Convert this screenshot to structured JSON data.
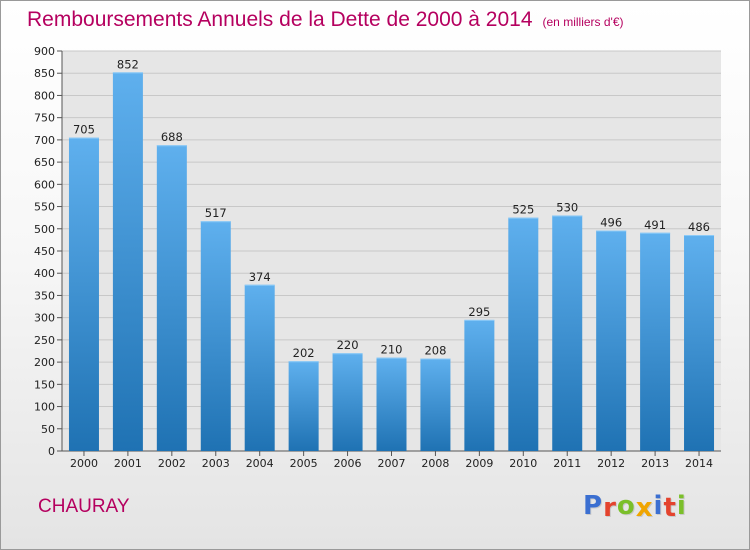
{
  "title": "Remboursements Annuels de la Dette de 2000 à 2014",
  "subtitle": "(en milliers d'€)",
  "commune": "CHAURAY",
  "logo": {
    "text": "Proxiti",
    "letters": [
      {
        "char": "P",
        "color": "#3b6fd1"
      },
      {
        "char": "r",
        "color": "#e4432d"
      },
      {
        "char": "o",
        "color": "#7bbf2a"
      },
      {
        "char": "x",
        "color": "#f0a500"
      },
      {
        "char": "i",
        "color": "#3b6fd1"
      },
      {
        "char": "t",
        "color": "#e4432d"
      },
      {
        "char": "i",
        "color": "#7bbf2a"
      }
    ]
  },
  "colors": {
    "title": "#b5005f",
    "bar_top": "#5fb0ee",
    "bar_bottom": "#1f72b3",
    "grid": "#c8c8c8",
    "plot_background": "#e6e6e6"
  },
  "chart_data": {
    "type": "bar",
    "title": "Remboursements Annuels de la Dette de 2000 à 2014",
    "subtitle": "(en milliers d'€)",
    "xlabel": "",
    "ylabel": "",
    "categories": [
      "2000",
      "2001",
      "2002",
      "2003",
      "2004",
      "2005",
      "2006",
      "2007",
      "2008",
      "2009",
      "2010",
      "2011",
      "2012",
      "2013",
      "2014"
    ],
    "values": [
      705,
      852,
      688,
      517,
      374,
      202,
      220,
      210,
      208,
      295,
      525,
      530,
      496,
      491,
      486
    ],
    "data_labels": [
      "705",
      "852",
      "688",
      "517",
      "374",
      "202",
      "220",
      "210",
      "208",
      "295",
      "525",
      "530",
      "496",
      "491",
      "486"
    ],
    "ylim": [
      0,
      900
    ],
    "yticks": [
      0,
      50,
      100,
      150,
      200,
      250,
      300,
      350,
      400,
      450,
      500,
      550,
      600,
      650,
      700,
      750,
      800,
      850,
      900
    ],
    "grid": true,
    "legend": "none"
  }
}
